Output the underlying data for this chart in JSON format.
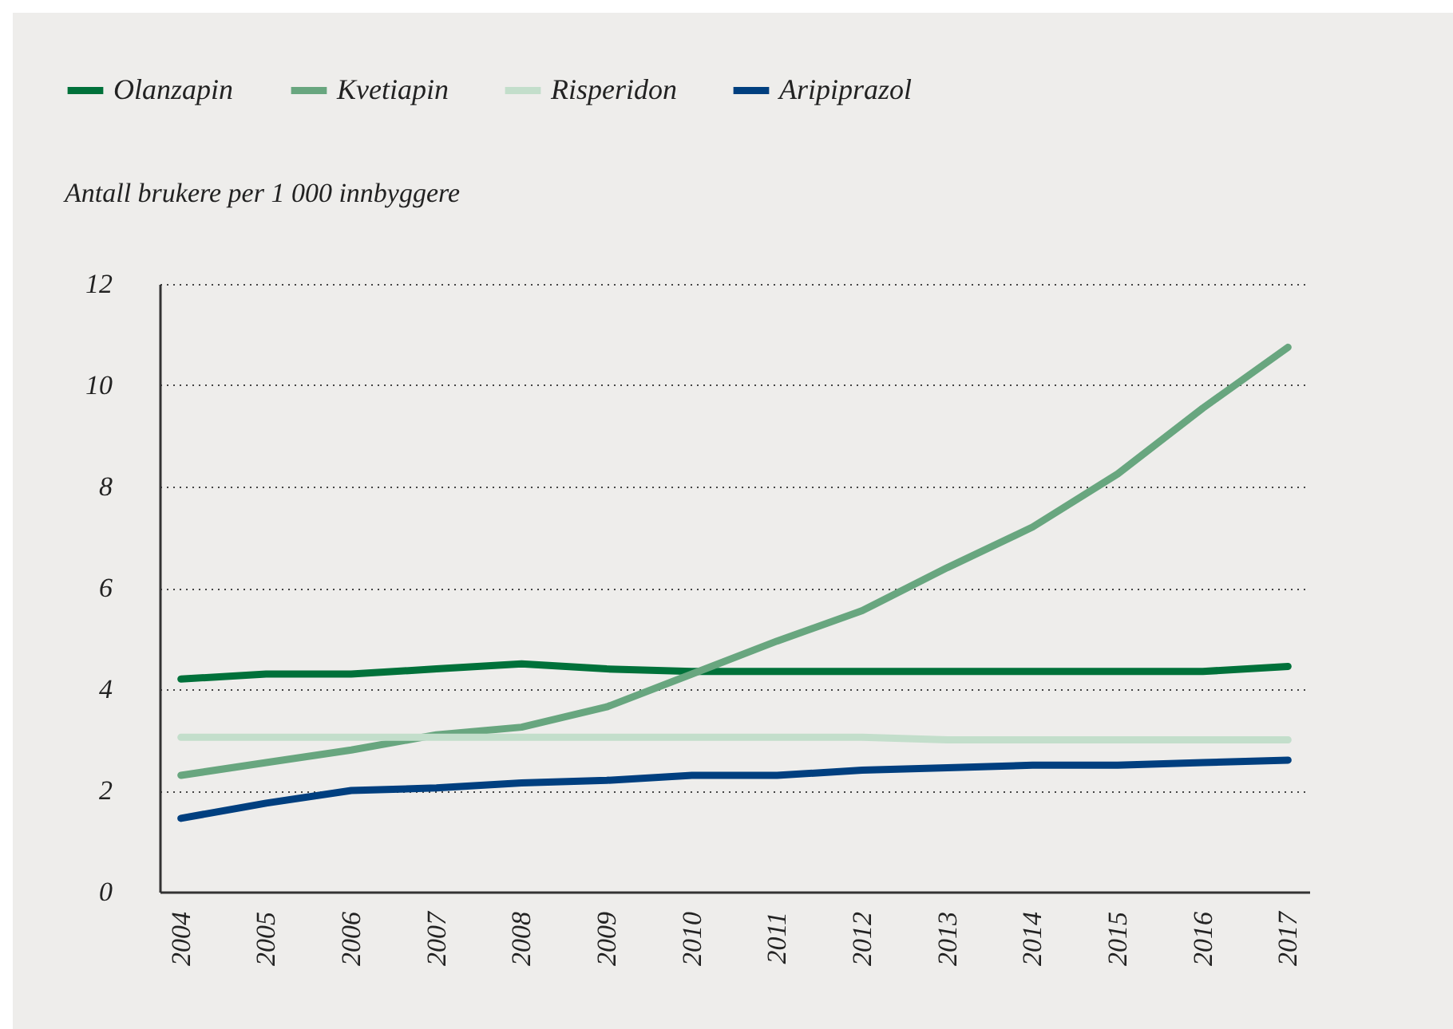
{
  "chart_data": {
    "type": "line",
    "ylabel": "Antall brukere per 1 000 innbyggere",
    "categories": [
      "2004",
      "2005",
      "2006",
      "2007",
      "2008",
      "2009",
      "2010",
      "2011",
      "2012",
      "2013",
      "2014",
      "2015",
      "2016",
      "2017"
    ],
    "series": [
      {
        "name": "Olanzapin",
        "color": "#00713a",
        "values": [
          4.2,
          4.3,
          4.3,
          4.4,
          4.5,
          4.4,
          4.35,
          4.35,
          4.35,
          4.35,
          4.35,
          4.35,
          4.35,
          4.45
        ]
      },
      {
        "name": "Kvetiapin",
        "color": "#68a67f",
        "values": [
          2.3,
          2.55,
          2.8,
          3.1,
          3.25,
          3.65,
          4.3,
          4.95,
          5.55,
          6.4,
          7.2,
          8.25,
          9.55,
          10.75
        ]
      },
      {
        "name": "Risperidon",
        "color": "#c3decb",
        "values": [
          3.05,
          3.05,
          3.05,
          3.05,
          3.05,
          3.05,
          3.05,
          3.05,
          3.05,
          3.0,
          3.0,
          3.0,
          3.0,
          3.0
        ]
      },
      {
        "name": "Aripiprazol",
        "color": "#003f7f",
        "values": [
          1.45,
          1.75,
          2.0,
          2.05,
          2.15,
          2.2,
          2.3,
          2.3,
          2.4,
          2.45,
          2.5,
          2.5,
          2.55,
          2.6
        ]
      }
    ],
    "ylim": [
      0,
      12
    ],
    "yticks": [
      0,
      2,
      4,
      6,
      8,
      10,
      12
    ],
    "grid": "y",
    "legend": "top left",
    "line_style": "solid"
  }
}
